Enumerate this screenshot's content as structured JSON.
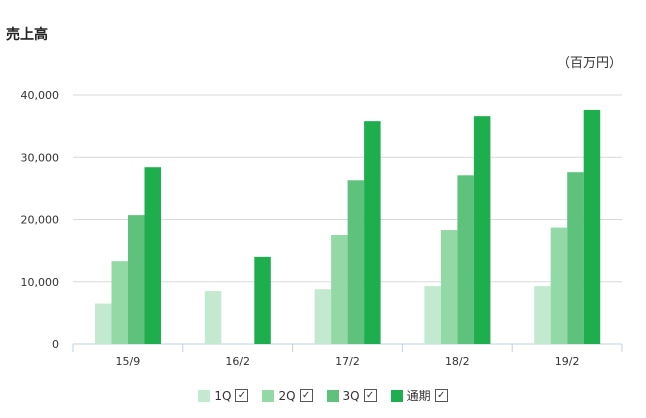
{
  "chart_data": {
    "type": "bar",
    "title": "売上高",
    "unit": "（百万円）",
    "categories": [
      "15/9",
      "16/2",
      "17/2",
      "18/2",
      "19/2"
    ],
    "series": [
      {
        "name": "1Q",
        "color": "#c3ead0",
        "values": [
          6500,
          8500,
          8800,
          9300,
          9300
        ]
      },
      {
        "name": "2Q",
        "color": "#92d9a6",
        "values": [
          13300,
          null,
          17500,
          18300,
          18700
        ]
      },
      {
        "name": "3Q",
        "color": "#5ec27d",
        "values": [
          20700,
          null,
          26300,
          27100,
          27600
        ]
      },
      {
        "name": "通期",
        "color": "#1eae4d",
        "values": [
          28400,
          14000,
          35800,
          36600,
          37600
        ]
      }
    ],
    "ylim": [
      0,
      40000
    ],
    "yticks": [
      0,
      10000,
      20000,
      30000,
      40000
    ],
    "ytick_labels": [
      "0",
      "10,000",
      "20,000",
      "30,000",
      "40,000"
    ],
    "grid": true,
    "legend_position": "bottom",
    "legend_checkbox": "☑"
  }
}
